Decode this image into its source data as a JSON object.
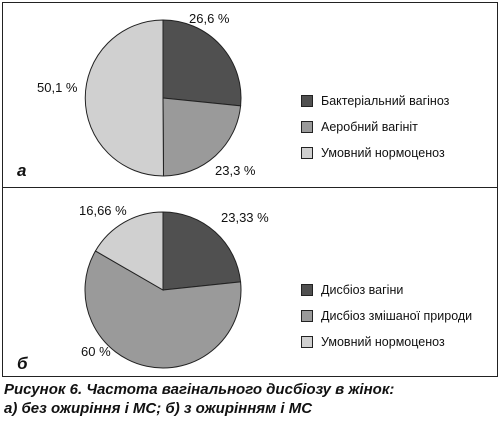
{
  "colors": {
    "dark": "#505050",
    "mid": "#9a9a9a",
    "light": "#d0d0d0",
    "stroke": "#222222"
  },
  "chart_data": [
    {
      "type": "pie",
      "panel_label": "а",
      "slices": [
        {
          "label": "Бактеріальний вагіноз",
          "value": 26.6,
          "display": "26,6 %",
          "color": "#505050"
        },
        {
          "label": "Аеробний вагініт",
          "value": 23.3,
          "display": "23,3 %",
          "color": "#9a9a9a"
        },
        {
          "label": "Умовний нормоценоз",
          "value": 50.1,
          "display": "50,1 %",
          "color": "#d0d0d0"
        }
      ]
    },
    {
      "type": "pie",
      "panel_label": "б",
      "slices": [
        {
          "label": "Дисбіоз вагіни",
          "value": 23.33,
          "display": "23,33 %",
          "color": "#505050"
        },
        {
          "label": "Дисбіоз змішаної природи",
          "value": 60,
          "display": "60 %",
          "color": "#9a9a9a"
        },
        {
          "label": "Умовний нормоценоз",
          "value": 16.66,
          "display": "16,66 %",
          "color": "#d0d0d0"
        }
      ]
    }
  ],
  "caption": {
    "line1": "Рисунок 6. Частота вагінального дисбіозу в жінок:",
    "line2": "а) без ожиріння і МС; б) з ожирінням і МС"
  }
}
